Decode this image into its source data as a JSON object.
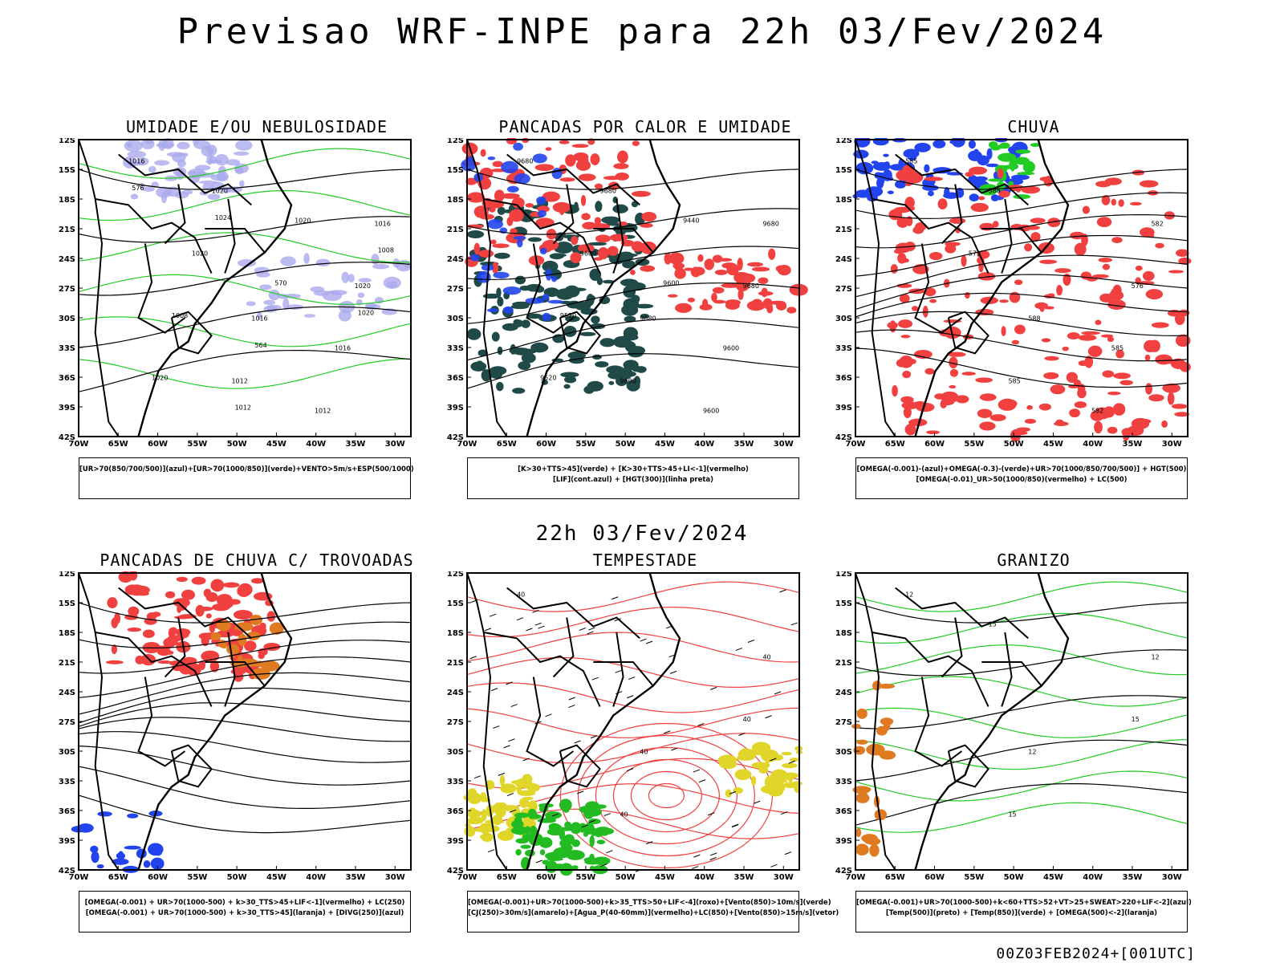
{
  "title": "Previsao WRF-INPE  para 22h 03/Fev/2024",
  "mid_title": "22h 03/Fev/2024",
  "footer_code": "00Z03FEB2024+[001UTC]",
  "axis": {
    "lat_ticks": [
      "12S",
      "15S",
      "18S",
      "21S",
      "24S",
      "27S",
      "30S",
      "33S",
      "36S",
      "39S",
      "42S"
    ],
    "lon_ticks": [
      "70W",
      "65W",
      "60W",
      "55W",
      "50W",
      "45W",
      "40W",
      "35W",
      "30W"
    ]
  },
  "panels": [
    {
      "id": "umidade",
      "title": "UMIDADE E/OU NEBULOSIDADE",
      "legend": [
        "[UR>70(850/700/500)](azul)+[UR>70(1000/850)](verde)+VENTO>5m/s+ESP(500/1000)"
      ],
      "labels": [
        "1016",
        "1016",
        "1016",
        "1012",
        "1020",
        "1020",
        "1016",
        "1020",
        "1012",
        "1008",
        "1020",
        "1020",
        "570",
        "576",
        "564",
        "1008",
        "1012",
        "1020",
        "1024"
      ]
    },
    {
      "id": "pancadas_calor",
      "title": "PANCADAS POR CALOR E UMIDADE",
      "legend": [
        "[K>30+TTS>45](verde) + [K>30+TTS>45+LI<-1](vermelho)",
        "[LIF](cont.azul) + [HGT(300)](linha preta)"
      ],
      "labels": [
        "9680",
        "9680",
        "9680",
        "9600",
        "9680",
        "9680",
        "9600",
        "9600",
        "9600",
        "9520",
        "9440",
        "9520",
        "9600"
      ]
    },
    {
      "id": "chuva",
      "title": "CHUVA",
      "legend": [
        "[OMEGA(-0.001)-(azul)+OMEGA(-0.3)-(verde)+UR>70(1000/850/700/500)] + HGT(500)",
        "[OMEGA(-0.01)_UR>50(1000/850)(vermelho) + LC(500)"
      ],
      "labels": [
        "585",
        "588",
        "582",
        "585",
        "576",
        "588",
        "585",
        "579",
        "582"
      ]
    },
    {
      "id": "pancadas_trovoadas",
      "title": "PANCADAS DE CHUVA C/ TROVOADAS",
      "legend": [
        "[OMEGA(-0.001) + UR>70(1000-500) + k>30_TTS>45+LIF<-1](vermelho) + LC(250)",
        "[OMEGA(-0.001) + UR>70(1000-500) + k>30_TTS>45](laranja) + [DIVG(250)](azul)"
      ],
      "labels": []
    },
    {
      "id": "tempestade",
      "title": "TEMPESTADE",
      "legend": [
        "[OMEGA(-0.001)+UR>70(1000-500)+k>35_TTS>50+LIF<-4](roxo)+[Vento(850)>10m/s](verde)",
        "[CJ(250)>30m/s](amarelo)+[Agua_P(40-60mm)](vermelho)+LC(850)+[Vento(850)>15m/s](vetor)"
      ],
      "labels": [
        "40",
        "40",
        "40",
        "40",
        "40"
      ]
    },
    {
      "id": "granizo",
      "title": "GRANIZO",
      "legend": [
        "[OMEGA(-0.001)+UR>70(1000-500)+k<60+TTS>52+VT>25+SWEAT>220+LIF<-2](azul)",
        "[Temp(500)](preto) + [Temp(850)](verde) + [OMEGA(500)<-2](laranja)"
      ],
      "labels": [
        "12",
        "12",
        "12",
        "15",
        "15",
        "15"
      ]
    }
  ],
  "colors": {
    "black": "#000000",
    "green": "#22cc22",
    "red": "#f04040",
    "blue": "#2244ee",
    "lavender": "#aaaaee",
    "darkteal": "#1f4a48",
    "yellow": "#e0d62a",
    "orange": "#e07a20",
    "purple": "#9966cc"
  }
}
